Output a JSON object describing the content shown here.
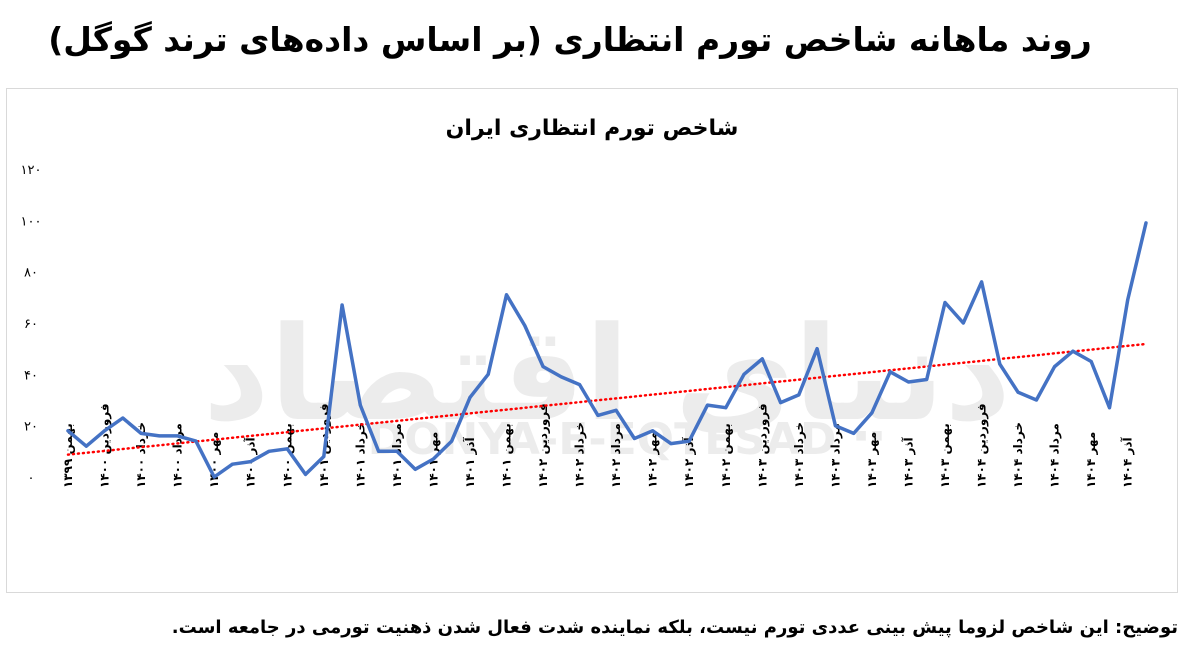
{
  "page": {
    "title": "روند ماهانه شاخص تورم انتظاری (بر اساس داده‌های ترند گوگل)",
    "footnote": "توضیح: این شاخص لزوما پیش بینی عددی تورم نیست، بلکه نماینده شدت فعال شدن ذهنیت تورمی در جامعه است.",
    "watermark": {
      "brand": "دنیای اقتصاد",
      "latin": "DONYA-E-EQTESAD"
    }
  },
  "chart_data": {
    "type": "line",
    "title": "شاخص تورم انتظاری ایران",
    "xlabel": "",
    "ylabel": "",
    "ylim": [
      0,
      120
    ],
    "y_ticks": [
      0,
      20,
      40,
      60,
      80,
      100,
      120
    ],
    "y_tick_labels": [
      "۰",
      "۲۰",
      "۴۰",
      "۶۰",
      "۸۰",
      "۱۰۰",
      "۱۲۰"
    ],
    "grid": false,
    "legend": "none",
    "x_tick_labels": [
      "بهمن ۱۳۹۹",
      "فروردین ۱۴۰۰",
      "خرداد ۱۴۰۰",
      "مرداد ۱۴۰۰",
      "مهر ۱۴۰۰",
      "آذر ۱۴۰۰",
      "بهمن ۱۴۰۰",
      "فروردین ۱۴۰۱",
      "خرداد ۱۴۰۱",
      "مرداد ۱۴۰۱",
      "مهر ۱۴۰۱",
      "آذر ۱۴۰۱",
      "بهمن ۱۴۰۱",
      "فروردین ۱۴۰۲",
      "خرداد ۱۴۰۲",
      "مرداد ۱۴۰۲",
      "مهر ۱۴۰۲",
      "آذر ۱۴۰۲",
      "بهمن ۱۴۰۲",
      "فروردین ۱۴۰۳",
      "خرداد ۱۴۰۳",
      "مرداد ۱۴۰۳",
      "مهر ۱۴۰۳",
      "آذر ۱۴۰۳",
      "بهمن ۱۴۰۳",
      "فروردین ۱۴۰۴",
      "خرداد ۱۴۰۴",
      "مرداد ۱۴۰۴",
      "مهر ۱۴۰۴",
      "آذر ۱۴۰۴"
    ],
    "series": [
      {
        "color": "#4472c4",
        "values": [
          18,
          12,
          18,
          23,
          17,
          16,
          16,
          14,
          0,
          5,
          6,
          10,
          11,
          1,
          8,
          67,
          28,
          10,
          10,
          3,
          7,
          14,
          31,
          40,
          71,
          59,
          43,
          39,
          36,
          24,
          26,
          15,
          18,
          13,
          14,
          28,
          27,
          40,
          46,
          29,
          32,
          50,
          20,
          17,
          25,
          41,
          37,
          38,
          68,
          60,
          76,
          44,
          33,
          30,
          43,
          49,
          45,
          27,
          69,
          99
        ]
      }
    ],
    "trendline": {
      "type": "linear",
      "color": "#ff0000",
      "style": "dotted"
    }
  }
}
